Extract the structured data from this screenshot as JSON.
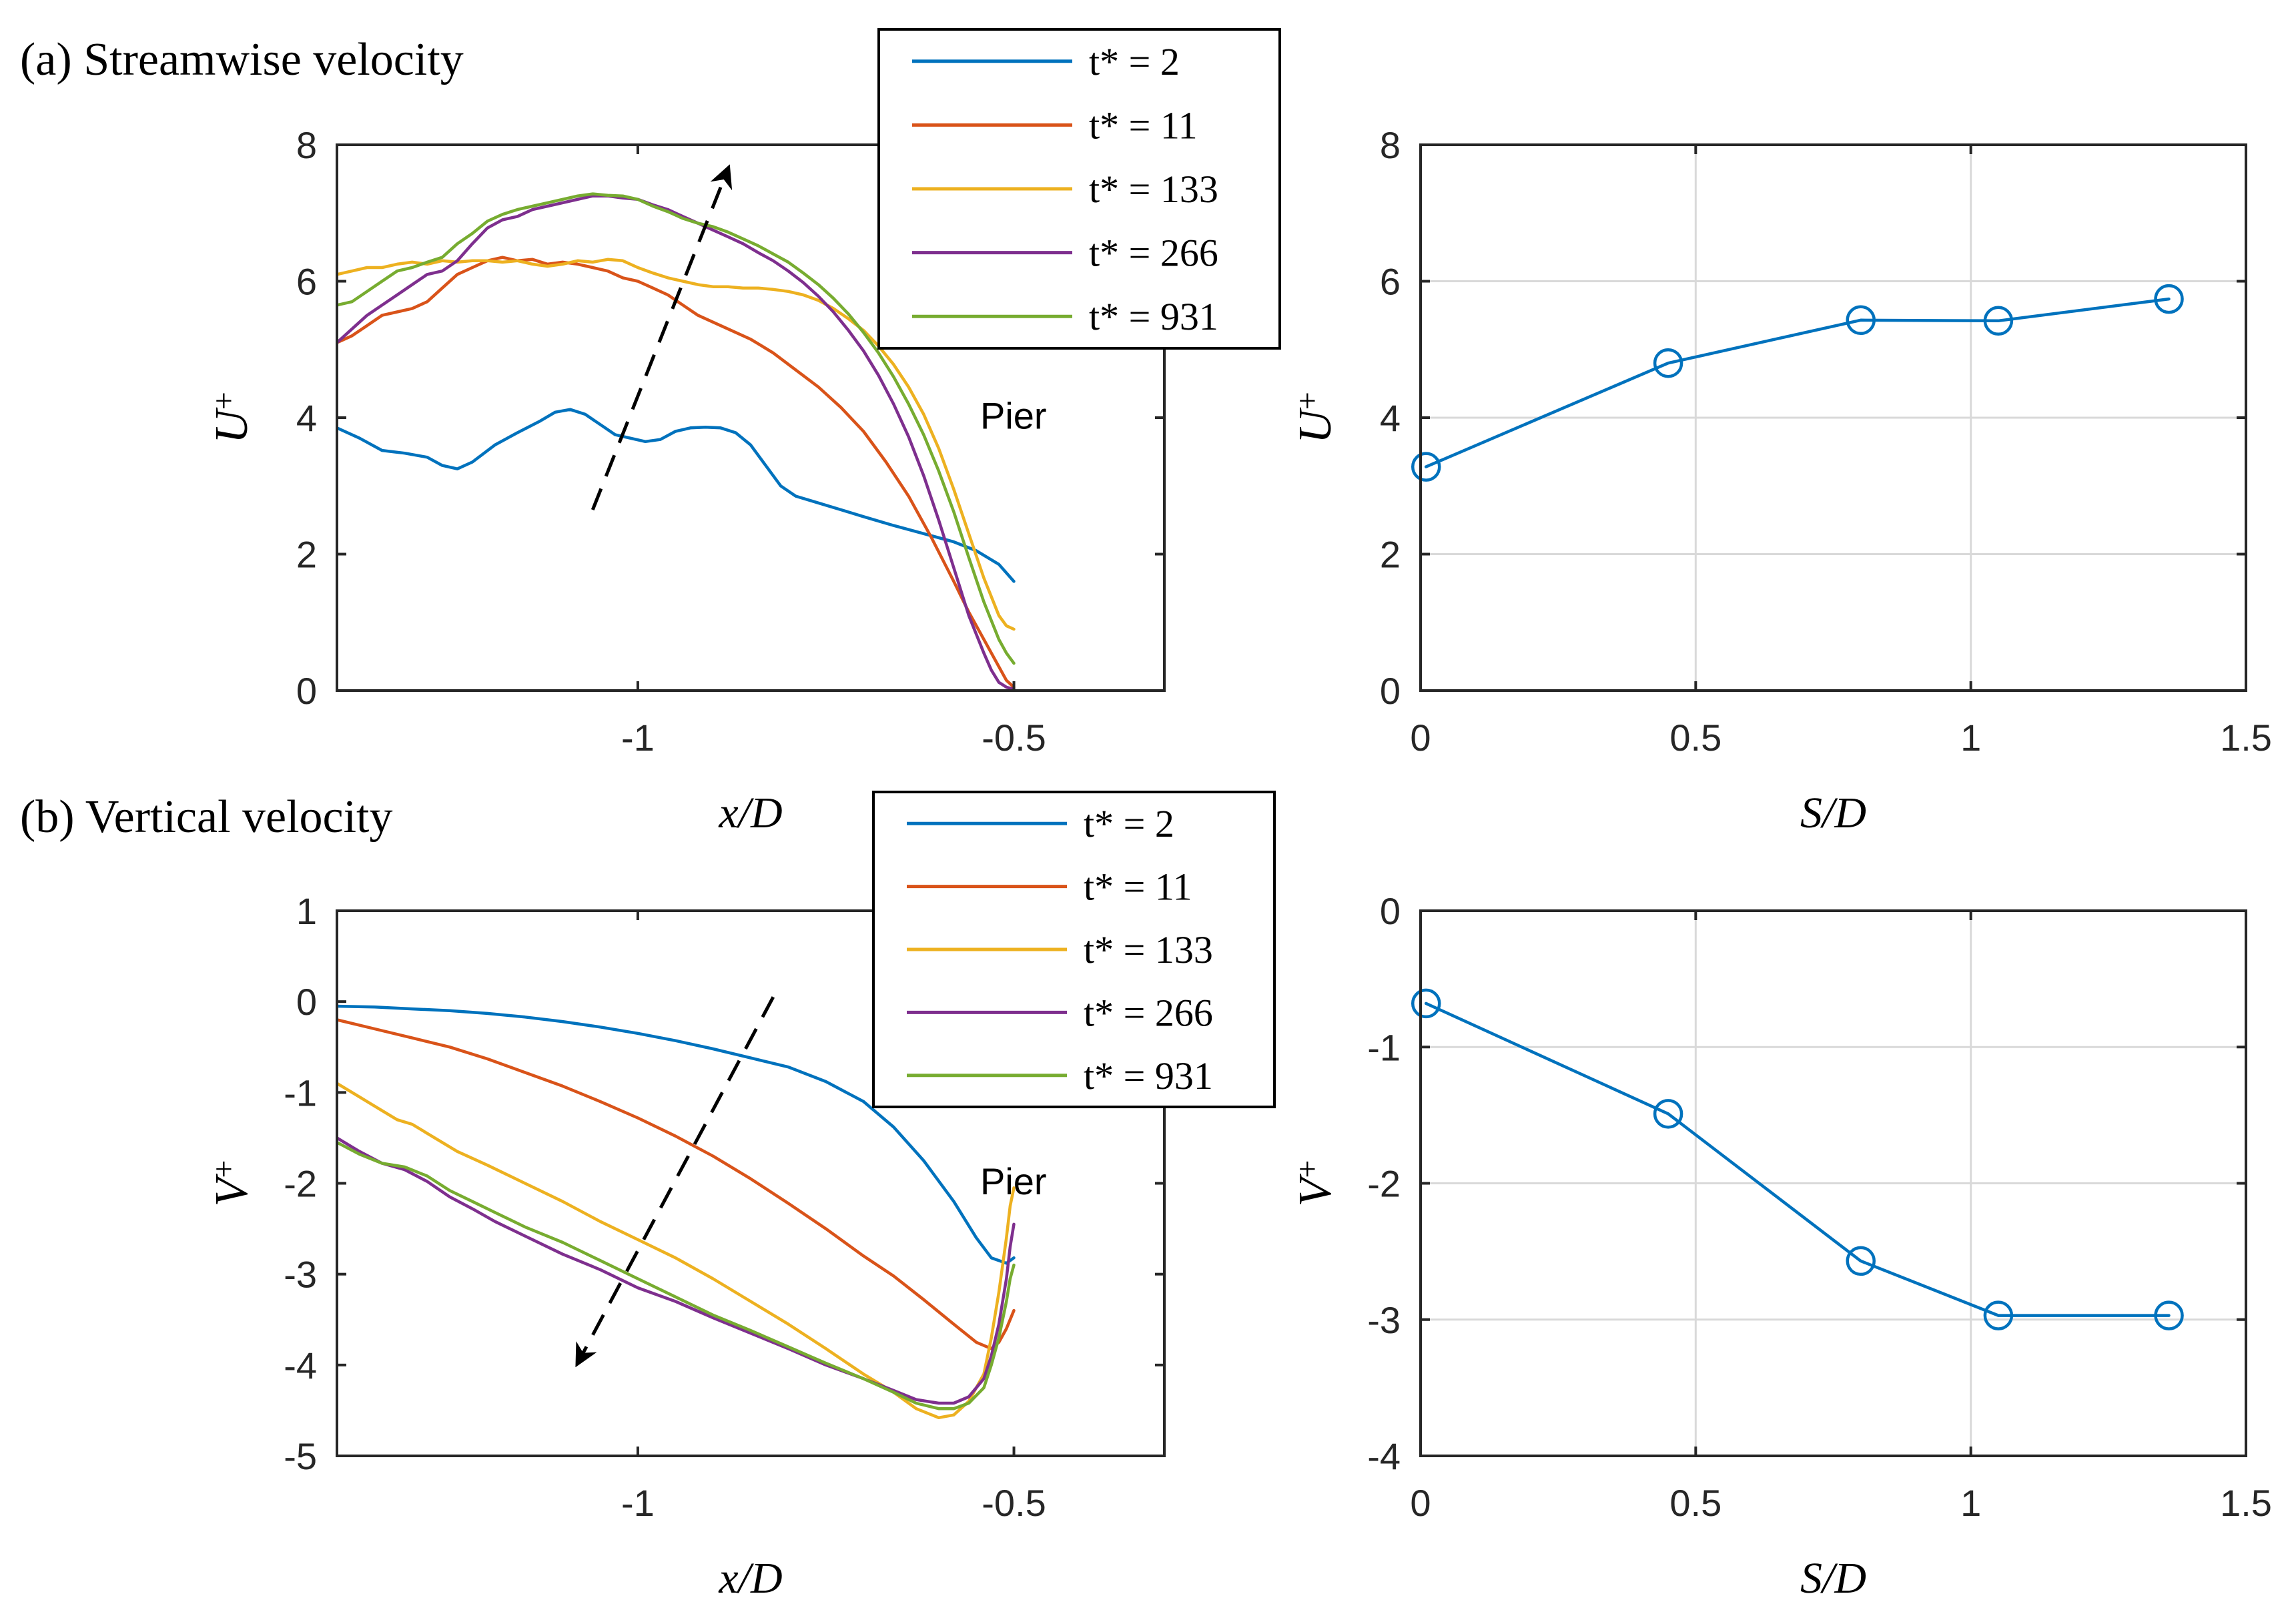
{
  "colors": {
    "blue": "#0072BD",
    "orange": "#D95319",
    "yellow": "#EDB120",
    "purple": "#7E2F8E",
    "green": "#77AC30",
    "grid": "#d9d9d9",
    "axis": "#262626"
  },
  "chart_data": [
    {
      "id": "a-left",
      "type": "line",
      "panel_title": "(a) Streamwise velocity",
      "xlabel": "x/D",
      "ylabel": "U",
      "ylabel_sup": "+",
      "xlim": [
        -1.4,
        -0.3
      ],
      "ylim": [
        0,
        8
      ],
      "xticks": [
        -1,
        -0.5
      ],
      "xtick_labels": [
        "-1",
        "-0.5"
      ],
      "yticks": [
        0,
        2,
        4,
        6,
        8
      ],
      "ytick_labels": [
        "0",
        "2",
        "4",
        "6",
        "8"
      ],
      "grid": false,
      "pier_label": "Pier",
      "pier_x": [
        -0.5,
        -0.3
      ],
      "arrow": {
        "from": [
          -1.06,
          2.65
        ],
        "to": [
          -0.88,
          7.65
        ]
      },
      "legend": [
        "t* = 2",
        "t* = 11",
        "t* = 133",
        "t* = 266",
        "t* = 931"
      ],
      "series": [
        {
          "name": "t* = 2",
          "color": "blue",
          "x": [
            -1.4,
            -1.37,
            -1.34,
            -1.31,
            -1.28,
            -1.26,
            -1.24,
            -1.22,
            -1.19,
            -1.16,
            -1.13,
            -1.11,
            -1.09,
            -1.07,
            -1.05,
            -1.03,
            -1.01,
            -0.99,
            -0.97,
            -0.95,
            -0.93,
            -0.91,
            -0.89,
            -0.87,
            -0.85,
            -0.83,
            -0.81,
            -0.79,
            -0.76,
            -0.73,
            -0.7,
            -0.66,
            -0.62,
            -0.58,
            -0.55,
            -0.52,
            -0.5
          ],
          "values": [
            3.85,
            3.7,
            3.52,
            3.48,
            3.42,
            3.3,
            3.25,
            3.35,
            3.6,
            3.78,
            3.95,
            4.08,
            4.12,
            4.05,
            3.9,
            3.75,
            3.7,
            3.65,
            3.68,
            3.8,
            3.85,
            3.86,
            3.85,
            3.78,
            3.6,
            3.3,
            3.0,
            2.85,
            2.75,
            2.65,
            2.55,
            2.42,
            2.3,
            2.18,
            2.05,
            1.85,
            1.6
          ]
        },
        {
          "name": "t* = 11",
          "color": "orange",
          "x": [
            -1.4,
            -1.38,
            -1.36,
            -1.34,
            -1.32,
            -1.3,
            -1.28,
            -1.26,
            -1.24,
            -1.22,
            -1.2,
            -1.18,
            -1.16,
            -1.14,
            -1.12,
            -1.1,
            -1.08,
            -1.06,
            -1.04,
            -1.02,
            -1.0,
            -0.98,
            -0.96,
            -0.94,
            -0.92,
            -0.9,
            -0.88,
            -0.85,
            -0.82,
            -0.79,
            -0.76,
            -0.73,
            -0.7,
            -0.67,
            -0.64,
            -0.61,
            -0.58,
            -0.56,
            -0.54,
            -0.52,
            -0.51,
            -0.5
          ],
          "values": [
            5.1,
            5.2,
            5.35,
            5.5,
            5.55,
            5.6,
            5.7,
            5.9,
            6.1,
            6.2,
            6.3,
            6.35,
            6.3,
            6.32,
            6.25,
            6.28,
            6.25,
            6.2,
            6.15,
            6.05,
            6.0,
            5.9,
            5.8,
            5.65,
            5.5,
            5.4,
            5.3,
            5.15,
            4.95,
            4.7,
            4.45,
            4.15,
            3.8,
            3.35,
            2.85,
            2.25,
            1.6,
            1.15,
            0.75,
            0.35,
            0.15,
            0.05
          ]
        },
        {
          "name": "t* = 133",
          "color": "yellow",
          "x": [
            -1.4,
            -1.38,
            -1.36,
            -1.34,
            -1.32,
            -1.3,
            -1.28,
            -1.26,
            -1.24,
            -1.22,
            -1.2,
            -1.18,
            -1.16,
            -1.14,
            -1.12,
            -1.1,
            -1.08,
            -1.06,
            -1.04,
            -1.02,
            -1.0,
            -0.98,
            -0.96,
            -0.94,
            -0.92,
            -0.9,
            -0.88,
            -0.86,
            -0.84,
            -0.82,
            -0.8,
            -0.78,
            -0.76,
            -0.74,
            -0.72,
            -0.7,
            -0.68,
            -0.66,
            -0.64,
            -0.62,
            -0.6,
            -0.58,
            -0.56,
            -0.54,
            -0.52,
            -0.51,
            -0.5
          ],
          "values": [
            6.1,
            6.15,
            6.2,
            6.2,
            6.25,
            6.28,
            6.25,
            6.3,
            6.28,
            6.3,
            6.3,
            6.28,
            6.3,
            6.25,
            6.22,
            6.25,
            6.3,
            6.28,
            6.32,
            6.3,
            6.2,
            6.12,
            6.05,
            6.0,
            5.95,
            5.92,
            5.92,
            5.9,
            5.9,
            5.88,
            5.85,
            5.8,
            5.72,
            5.6,
            5.45,
            5.28,
            5.05,
            4.78,
            4.45,
            4.05,
            3.55,
            2.95,
            2.3,
            1.65,
            1.1,
            0.95,
            0.9
          ]
        },
        {
          "name": "t* = 266",
          "color": "purple",
          "x": [
            -1.4,
            -1.38,
            -1.36,
            -1.34,
            -1.32,
            -1.3,
            -1.28,
            -1.26,
            -1.24,
            -1.22,
            -1.2,
            -1.18,
            -1.16,
            -1.14,
            -1.12,
            -1.1,
            -1.08,
            -1.06,
            -1.04,
            -1.02,
            -1.0,
            -0.98,
            -0.96,
            -0.94,
            -0.92,
            -0.9,
            -0.88,
            -0.86,
            -0.84,
            -0.82,
            -0.8,
            -0.78,
            -0.76,
            -0.74,
            -0.72,
            -0.7,
            -0.68,
            -0.66,
            -0.64,
            -0.62,
            -0.6,
            -0.58,
            -0.56,
            -0.54,
            -0.53,
            -0.52,
            -0.51,
            -0.5
          ],
          "values": [
            5.1,
            5.3,
            5.5,
            5.65,
            5.8,
            5.95,
            6.1,
            6.15,
            6.3,
            6.55,
            6.78,
            6.9,
            6.95,
            7.05,
            7.1,
            7.15,
            7.2,
            7.25,
            7.25,
            7.22,
            7.2,
            7.12,
            7.05,
            6.95,
            6.85,
            6.75,
            6.65,
            6.55,
            6.42,
            6.3,
            6.15,
            5.98,
            5.78,
            5.55,
            5.28,
            4.98,
            4.62,
            4.2,
            3.72,
            3.15,
            2.5,
            1.8,
            1.1,
            0.55,
            0.3,
            0.12,
            0.05,
            0.02
          ]
        },
        {
          "name": "t* = 931",
          "color": "green",
          "x": [
            -1.4,
            -1.38,
            -1.36,
            -1.34,
            -1.32,
            -1.3,
            -1.28,
            -1.26,
            -1.24,
            -1.22,
            -1.2,
            -1.18,
            -1.16,
            -1.14,
            -1.12,
            -1.1,
            -1.08,
            -1.06,
            -1.04,
            -1.02,
            -1.0,
            -0.98,
            -0.96,
            -0.94,
            -0.92,
            -0.9,
            -0.88,
            -0.86,
            -0.84,
            -0.82,
            -0.8,
            -0.78,
            -0.76,
            -0.74,
            -0.72,
            -0.7,
            -0.68,
            -0.66,
            -0.64,
            -0.62,
            -0.6,
            -0.58,
            -0.56,
            -0.54,
            -0.52,
            -0.51,
            -0.5
          ],
          "values": [
            5.65,
            5.7,
            5.85,
            6.0,
            6.15,
            6.2,
            6.28,
            6.35,
            6.55,
            6.7,
            6.88,
            6.98,
            7.05,
            7.1,
            7.15,
            7.2,
            7.25,
            7.28,
            7.26,
            7.25,
            7.2,
            7.1,
            7.02,
            6.92,
            6.85,
            6.8,
            6.72,
            6.62,
            6.52,
            6.4,
            6.28,
            6.12,
            5.95,
            5.75,
            5.52,
            5.25,
            4.95,
            4.6,
            4.2,
            3.75,
            3.22,
            2.62,
            1.95,
            1.3,
            0.75,
            0.55,
            0.4
          ]
        }
      ]
    },
    {
      "id": "a-right",
      "type": "line",
      "xlabel": "S/D",
      "ylabel": "U",
      "ylabel_sup": "+",
      "xlim": [
        0,
        1.5
      ],
      "ylim": [
        0,
        8
      ],
      "xticks": [
        0,
        0.5,
        1,
        1.5
      ],
      "xtick_labels": [
        "0",
        "0.5",
        "1",
        "1.5"
      ],
      "yticks": [
        0,
        2,
        4,
        6,
        8
      ],
      "ytick_labels": [
        "0",
        "2",
        "4",
        "6",
        "8"
      ],
      "grid": true,
      "marker": "circle",
      "series": [
        {
          "name": "U+",
          "color": "blue",
          "x": [
            0.01,
            0.45,
            0.8,
            1.05,
            1.36
          ],
          "values": [
            3.28,
            4.8,
            5.43,
            5.42,
            5.74
          ]
        }
      ]
    },
    {
      "id": "b-left",
      "type": "line",
      "panel_title": "(b) Vertical velocity",
      "xlabel": "x/D",
      "ylabel": "V",
      "ylabel_sup": "+",
      "xlim": [
        -1.4,
        -0.3
      ],
      "ylim": [
        -5,
        1
      ],
      "xticks": [
        -1,
        -0.5
      ],
      "xtick_labels": [
        "-1",
        "-0.5"
      ],
      "yticks": [
        -5,
        -4,
        -3,
        -2,
        -1,
        0,
        1
      ],
      "ytick_labels": [
        "-5",
        "-4",
        "-3",
        "-2",
        "-1",
        "0",
        "1"
      ],
      "grid": false,
      "pier_label": "Pier",
      "pier_x": [
        -0.5,
        -0.3
      ],
      "arrow": {
        "from": [
          -0.82,
          0.05
        ],
        "to": [
          -1.08,
          -3.98
        ]
      },
      "legend": [
        "t* = 2",
        "t* = 11",
        "t* = 133",
        "t* = 266",
        "t* = 931"
      ],
      "series": [
        {
          "name": "t* = 2",
          "color": "blue",
          "x": [
            -1.4,
            -1.35,
            -1.3,
            -1.25,
            -1.2,
            -1.15,
            -1.1,
            -1.05,
            -1.0,
            -0.95,
            -0.9,
            -0.85,
            -0.8,
            -0.75,
            -0.7,
            -0.66,
            -0.62,
            -0.58,
            -0.55,
            -0.53,
            -0.51,
            -0.5
          ],
          "values": [
            -0.05,
            -0.06,
            -0.08,
            -0.1,
            -0.13,
            -0.17,
            -0.22,
            -0.28,
            -0.35,
            -0.43,
            -0.52,
            -0.62,
            -0.72,
            -0.88,
            -1.1,
            -1.38,
            -1.75,
            -2.2,
            -2.6,
            -2.82,
            -2.88,
            -2.82
          ]
        },
        {
          "name": "t* = 11",
          "color": "orange",
          "x": [
            -1.4,
            -1.35,
            -1.3,
            -1.25,
            -1.2,
            -1.15,
            -1.1,
            -1.05,
            -1.0,
            -0.95,
            -0.9,
            -0.85,
            -0.8,
            -0.75,
            -0.7,
            -0.66,
            -0.62,
            -0.58,
            -0.55,
            -0.53,
            -0.52,
            -0.51,
            -0.5
          ],
          "values": [
            -0.2,
            -0.3,
            -0.4,
            -0.5,
            -0.63,
            -0.78,
            -0.93,
            -1.1,
            -1.28,
            -1.48,
            -1.7,
            -1.95,
            -2.22,
            -2.5,
            -2.8,
            -3.02,
            -3.28,
            -3.55,
            -3.75,
            -3.82,
            -3.75,
            -3.6,
            -3.4
          ]
        },
        {
          "name": "t* = 133",
          "color": "yellow",
          "x": [
            -1.4,
            -1.37,
            -1.34,
            -1.32,
            -1.3,
            -1.27,
            -1.24,
            -1.2,
            -1.15,
            -1.1,
            -1.05,
            -1.0,
            -0.95,
            -0.9,
            -0.85,
            -0.8,
            -0.75,
            -0.7,
            -0.66,
            -0.63,
            -0.6,
            -0.58,
            -0.56,
            -0.54,
            -0.53,
            -0.52,
            -0.51,
            -0.505,
            -0.5
          ],
          "values": [
            -0.9,
            -1.05,
            -1.2,
            -1.3,
            -1.35,
            -1.5,
            -1.65,
            -1.8,
            -2.0,
            -2.2,
            -2.42,
            -2.62,
            -2.82,
            -3.05,
            -3.3,
            -3.55,
            -3.82,
            -4.1,
            -4.3,
            -4.48,
            -4.58,
            -4.55,
            -4.4,
            -4.1,
            -3.7,
            -3.2,
            -2.6,
            -2.25,
            -2.05
          ]
        },
        {
          "name": "t* = 266",
          "color": "purple",
          "x": [
            -1.4,
            -1.37,
            -1.34,
            -1.31,
            -1.28,
            -1.25,
            -1.22,
            -1.19,
            -1.15,
            -1.1,
            -1.05,
            -1.0,
            -0.95,
            -0.9,
            -0.85,
            -0.8,
            -0.75,
            -0.7,
            -0.66,
            -0.63,
            -0.6,
            -0.58,
            -0.56,
            -0.54,
            -0.53,
            -0.52,
            -0.51,
            -0.505,
            -0.5
          ],
          "values": [
            -1.5,
            -1.65,
            -1.78,
            -1.85,
            -1.98,
            -2.15,
            -2.28,
            -2.42,
            -2.58,
            -2.78,
            -2.95,
            -3.15,
            -3.3,
            -3.48,
            -3.65,
            -3.82,
            -4.0,
            -4.15,
            -4.28,
            -4.38,
            -4.42,
            -4.42,
            -4.35,
            -4.15,
            -3.9,
            -3.55,
            -3.05,
            -2.7,
            -2.45
          ]
        },
        {
          "name": "t* = 931",
          "color": "green",
          "x": [
            -1.4,
            -1.37,
            -1.34,
            -1.31,
            -1.28,
            -1.25,
            -1.22,
            -1.19,
            -1.15,
            -1.1,
            -1.05,
            -1.0,
            -0.95,
            -0.9,
            -0.85,
            -0.8,
            -0.75,
            -0.7,
            -0.66,
            -0.63,
            -0.6,
            -0.58,
            -0.56,
            -0.54,
            -0.53,
            -0.52,
            -0.51,
            -0.505,
            -0.5
          ],
          "values": [
            -1.55,
            -1.68,
            -1.78,
            -1.82,
            -1.92,
            -2.08,
            -2.2,
            -2.32,
            -2.48,
            -2.65,
            -2.85,
            -3.05,
            -3.25,
            -3.45,
            -3.62,
            -3.8,
            -3.98,
            -4.15,
            -4.3,
            -4.42,
            -4.48,
            -4.48,
            -4.42,
            -4.25,
            -4.0,
            -3.7,
            -3.3,
            -3.05,
            -2.9
          ]
        }
      ]
    },
    {
      "id": "b-right",
      "type": "line",
      "xlabel": "S/D",
      "ylabel": "V",
      "ylabel_sup": "+",
      "xlim": [
        0,
        1.5
      ],
      "ylim": [
        -4,
        0
      ],
      "xticks": [
        0,
        0.5,
        1,
        1.5
      ],
      "xtick_labels": [
        "0",
        "0.5",
        "1",
        "1.5"
      ],
      "yticks": [
        -4,
        -3,
        -2,
        -1,
        0
      ],
      "ytick_labels": [
        "-4",
        "-3",
        "-2",
        "-1",
        "0"
      ],
      "grid": true,
      "marker": "circle",
      "series": [
        {
          "name": "V+",
          "color": "blue",
          "x": [
            0.01,
            0.45,
            0.8,
            1.05,
            1.36
          ],
          "values": [
            -0.68,
            -1.49,
            -2.57,
            -2.97,
            -2.97
          ]
        }
      ]
    }
  ]
}
